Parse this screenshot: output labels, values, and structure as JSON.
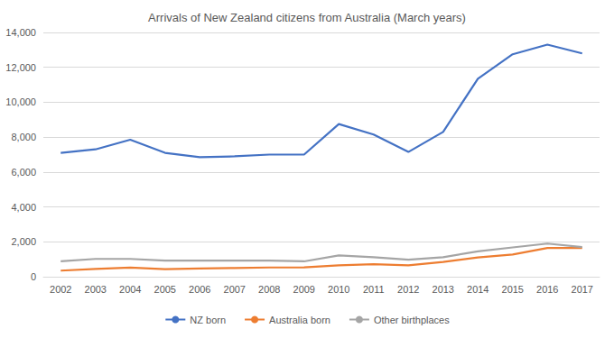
{
  "chart_data": {
    "type": "line",
    "title": "Arrivals of New Zealand citizens from Australia (March years)",
    "categories": [
      "2002",
      "2003",
      "2004",
      "2005",
      "2006",
      "2007",
      "2008",
      "2009",
      "2010",
      "2011",
      "2012",
      "2013",
      "2014",
      "2015",
      "2016",
      "2017"
    ],
    "series": [
      {
        "name": "NZ born",
        "color": "#4472c4",
        "values": [
          7100,
          7300,
          7850,
          7100,
          6850,
          6900,
          7000,
          7000,
          8750,
          8150,
          7150,
          8300,
          11350,
          12750,
          13300,
          12800
        ]
      },
      {
        "name": "Australia born",
        "color": "#ed7d31",
        "values": [
          350,
          450,
          520,
          430,
          470,
          500,
          530,
          540,
          650,
          720,
          650,
          850,
          1100,
          1270,
          1650,
          1650
        ]
      },
      {
        "name": "Other birthplaces",
        "color": "#a5a5a5",
        "values": [
          880,
          1020,
          1020,
          920,
          920,
          920,
          920,
          880,
          1220,
          1120,
          980,
          1120,
          1450,
          1680,
          1900,
          1700
        ]
      }
    ],
    "ylim": [
      0,
      14000
    ],
    "yticks": [
      0,
      {
        "value": 2000,
        "label": "2,000"
      },
      {
        "value": 4000,
        "label": "4,000"
      },
      {
        "value": 6000,
        "label": "6,000"
      },
      {
        "value": 8000,
        "label": "8,000"
      },
      {
        "value": 10000,
        "label": "10,000"
      },
      {
        "value": 12000,
        "label": "12,000"
      },
      {
        "value": 14000,
        "label": "14,000"
      }
    ],
    "grid": true,
    "legend": "bottom"
  }
}
